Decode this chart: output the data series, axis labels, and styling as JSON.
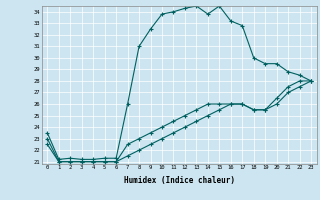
{
  "xlabel": "Humidex (Indice chaleur)",
  "bg_color": "#cce5f0",
  "line_color": "#006060",
  "x_hours": [
    0,
    1,
    2,
    3,
    4,
    5,
    6,
    7,
    8,
    9,
    10,
    11,
    12,
    13,
    14,
    15,
    16,
    17,
    18,
    19,
    20,
    21,
    22,
    23
  ],
  "y_max": [
    23.5,
    21.2,
    21.3,
    21.2,
    21.2,
    21.3,
    21.3,
    26.0,
    31.0,
    32.5,
    33.8,
    34.0,
    34.3,
    34.5,
    33.8,
    34.5,
    33.2,
    32.8,
    30.0,
    29.5,
    29.5,
    28.8,
    28.5,
    28.0
  ],
  "y_mean": [
    23.0,
    21.0,
    21.0,
    21.0,
    21.0,
    21.0,
    21.0,
    22.5,
    23.0,
    23.5,
    24.0,
    24.5,
    25.0,
    25.5,
    26.0,
    26.0,
    26.0,
    26.0,
    25.5,
    25.5,
    26.5,
    27.5,
    28.0,
    28.0
  ],
  "y_min": [
    22.5,
    21.0,
    21.0,
    21.0,
    21.0,
    21.0,
    21.0,
    21.5,
    22.0,
    22.5,
    23.0,
    23.5,
    24.0,
    24.5,
    25.0,
    25.5,
    26.0,
    26.0,
    25.5,
    25.5,
    26.0,
    27.0,
    27.5,
    28.0
  ],
  "ylim": [
    21,
    34.5
  ],
  "xlim": [
    -0.5,
    23.5
  ],
  "yticks": [
    21,
    22,
    23,
    24,
    25,
    26,
    27,
    28,
    29,
    30,
    31,
    32,
    33,
    34
  ],
  "xticks": [
    0,
    1,
    2,
    3,
    4,
    5,
    6,
    7,
    8,
    9,
    10,
    11,
    12,
    13,
    14,
    15,
    16,
    17,
    18,
    19,
    20,
    21,
    22,
    23
  ]
}
